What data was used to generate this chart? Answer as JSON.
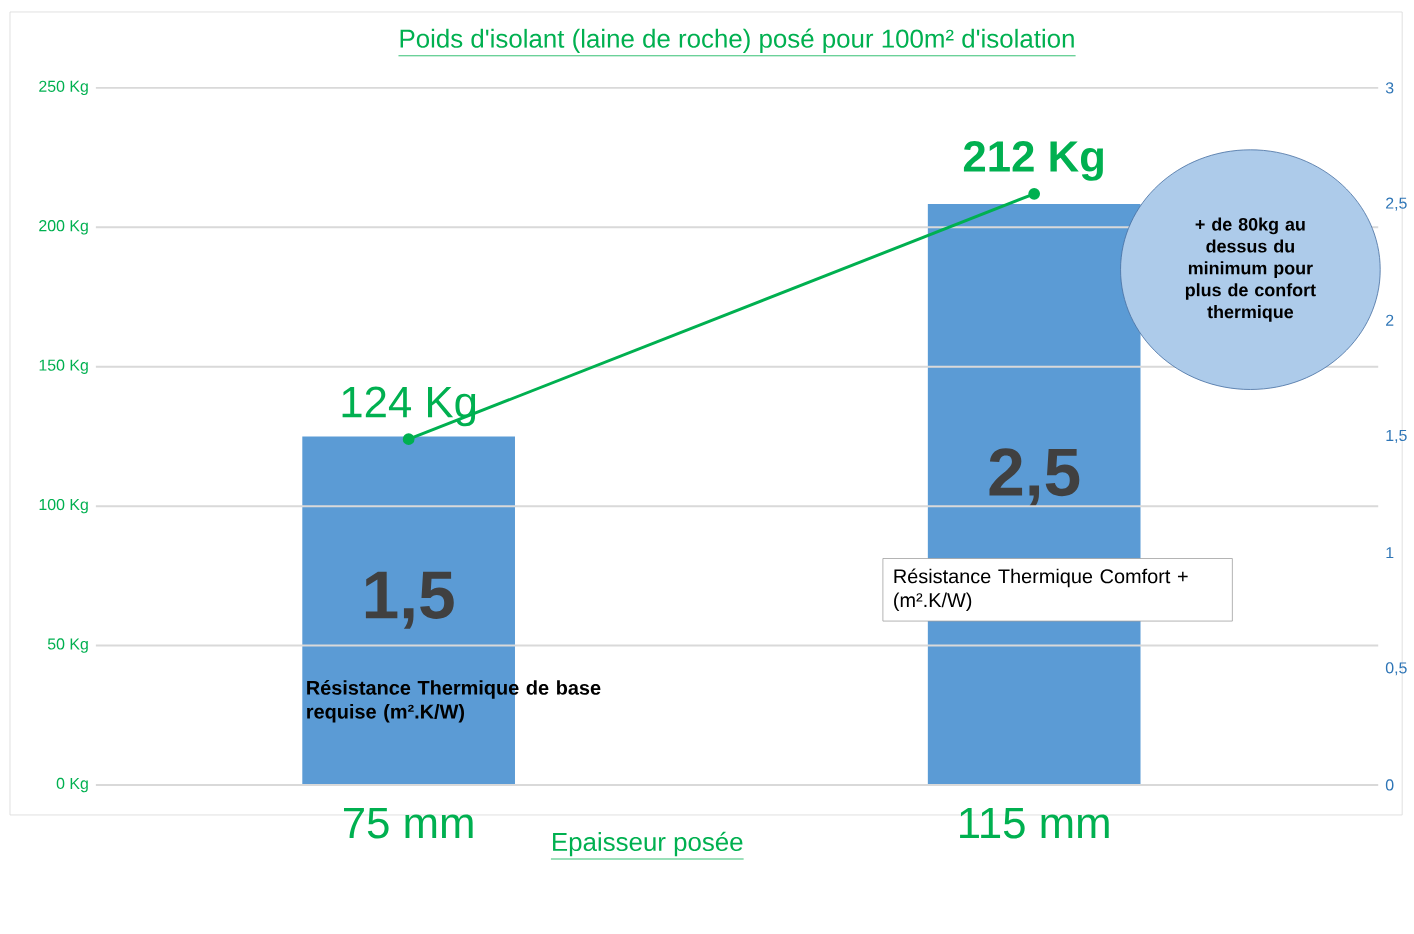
{
  "chart_data": {
    "type": "bar",
    "title": "Poids d'isolant (laine de roche) posé pour 100m² d'isolation",
    "xlabel": "Epaisseur posée",
    "categories": [
      "75 mm",
      "115 mm"
    ],
    "series": [
      {
        "type": "bar",
        "axis": "y2",
        "color": "#5b9bd5",
        "values": [
          1.5,
          2.5
        ],
        "value_labels": [
          "1,5",
          "2,5"
        ]
      },
      {
        "type": "line",
        "color": "#00b050",
        "values": [
          124,
          212
        ],
        "value_labels": [
          "124 Kg",
          "212 Kg"
        ],
        "marker": "circle"
      }
    ],
    "ylim": [
      0,
      250
    ],
    "yticks": [
      {
        "value": 0,
        "label": "0 Kg"
      },
      {
        "value": 50,
        "label": "50 Kg"
      },
      {
        "value": 100,
        "label": "100 Kg"
      },
      {
        "value": 150,
        "label": "150 Kg"
      },
      {
        "value": 200,
        "label": "200 Kg"
      },
      {
        "value": 250,
        "label": "250 Kg"
      }
    ],
    "y2lim": [
      0,
      3
    ],
    "y2ticks": [
      0,
      {
        "value": 0.5,
        "label": "0,5"
      },
      1,
      {
        "value": 1.5,
        "label": "1,5"
      },
      2,
      {
        "value": 2.5,
        "label": "2,5"
      },
      3
    ],
    "grid": "y",
    "annotations": [
      "Résistance Thermique de base requise (m².K/W)",
      "Résistance Thermique Comfort + (m².K/W)",
      "+ de 80kg au dessus du minimum pour plus de confort thermique"
    ]
  }
}
